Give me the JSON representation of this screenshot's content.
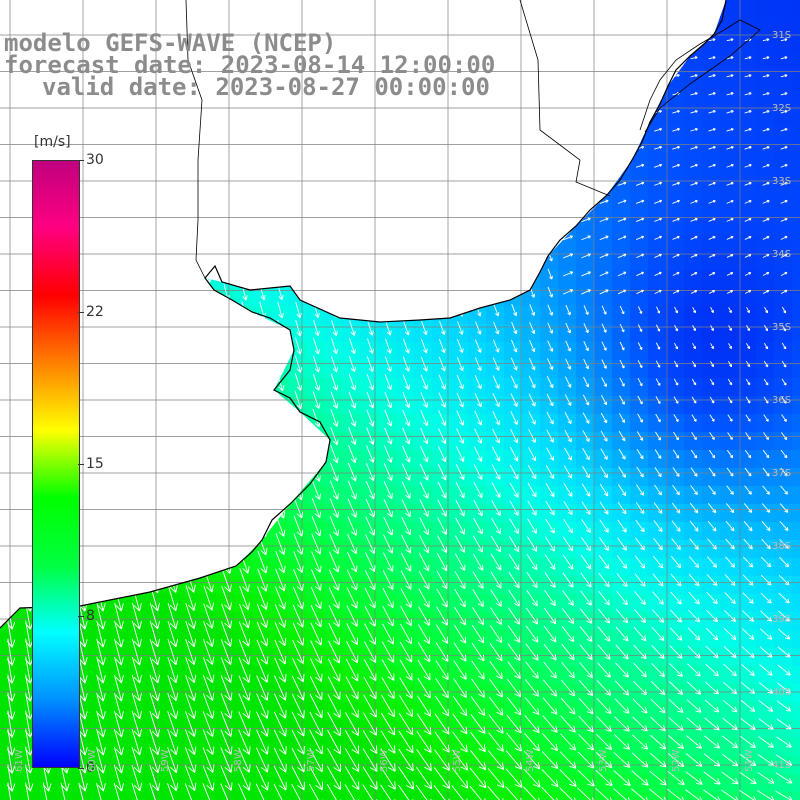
{
  "titles": {
    "model": "modelo GEFS-WAVE (NCEP)",
    "forecast": "forecast date: 2023-08-14 12:00:00",
    "valid": "valid date: 2023-08-27 00:00:00"
  },
  "colorbar": {
    "unit": "[m/s]",
    "ticks": [
      "30",
      "22",
      "15",
      "8",
      "0"
    ],
    "range": [
      0,
      30
    ],
    "colors": [
      "#0000ff",
      "#0090ff",
      "#00ffff",
      "#00ff40",
      "#00ff00",
      "#ffff00",
      "#ff8000",
      "#ff0000",
      "#ff0080",
      "#c00080"
    ]
  },
  "lat_labels": [
    "31S",
    "32S",
    "33S",
    "34S",
    "35S",
    "36S",
    "37S",
    "38S",
    "39S",
    "40S",
    "41S"
  ],
  "lon_labels": [
    "61W",
    "60W",
    "59W",
    "58W",
    "57W",
    "56W",
    "55W",
    "54W",
    "53W",
    "52W",
    "51W"
  ],
  "colors": {
    "land": "#ffffff",
    "coast": "#000000",
    "grid": "#808080",
    "arrows": "#ffffff",
    "title": "#8c8c8c"
  }
}
